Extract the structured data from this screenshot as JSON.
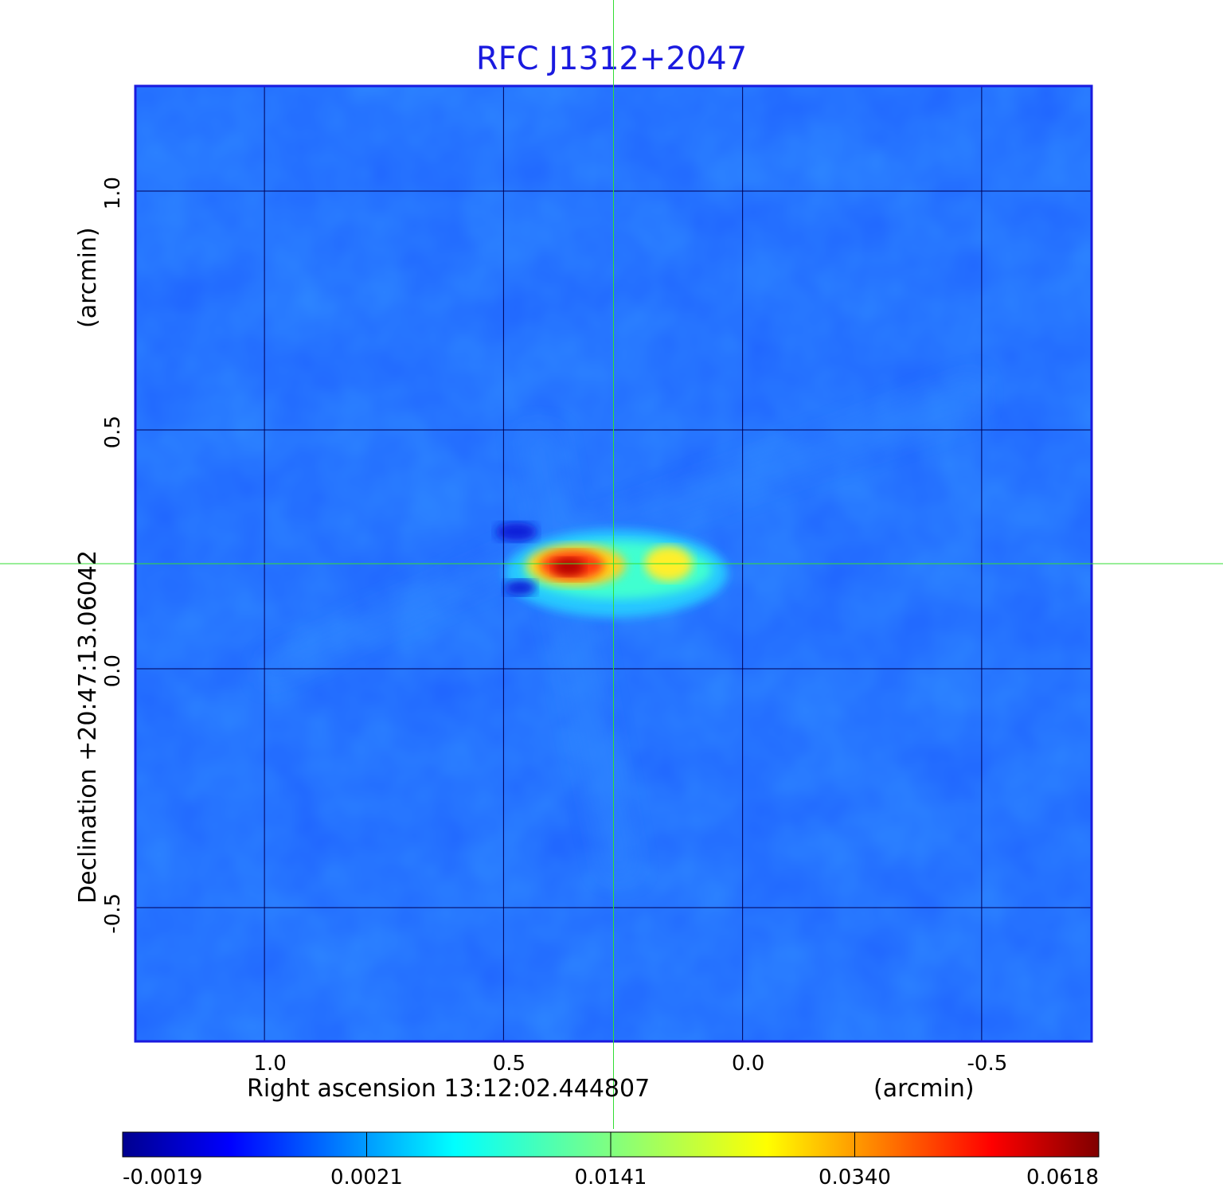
{
  "chart_data": {
    "type": "heatmap",
    "title": "RFC J1312+2047",
    "xlabel": "Right ascension  13:12:02.444807",
    "xunit": "(arcmin)",
    "ylabel": "Declination  +20:47:13.06042",
    "yunit": "(arcmin)",
    "x_ticks": [
      "1.0",
      "0.5",
      "0.0",
      "-0.5"
    ],
    "x_tick_values": [
      1.0,
      0.5,
      0.0,
      -0.5
    ],
    "y_ticks": [
      "1.0",
      "0.5",
      "0.0",
      "-0.5"
    ],
    "y_tick_values": [
      1.0,
      0.5,
      0.0,
      -0.5
    ],
    "xlim": [
      1.27,
      -0.73
    ],
    "ylim": [
      -0.78,
      1.22
    ],
    "grid": true,
    "crosshair": {
      "x": 0.27,
      "y": 0.22,
      "color": "#33dd33"
    },
    "colormap": "jet",
    "colorbar_ticks": [
      "-0.0019",
      "0.0021",
      "0.0141",
      "0.0340",
      "0.0618"
    ],
    "colorbar_range": [
      -0.0019,
      0.0618
    ],
    "colors": {
      "title": "#1a1adf",
      "frame": "#1a1adf",
      "background": "#1f63ff"
    },
    "components": [
      {
        "x": 0.34,
        "y": 0.22,
        "peak": 0.0618
      },
      {
        "x": 0.155,
        "y": 0.22,
        "peak": 0.028
      }
    ]
  }
}
